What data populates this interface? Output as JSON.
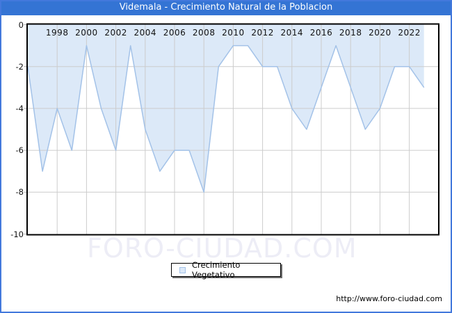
{
  "window": {
    "title": "Videmala - Crecimiento Natural de la Poblacion",
    "title_bar_color": "#3474d4",
    "frame_color": "#4379dc",
    "watermark": "FORO-CIUDAD.COM",
    "url_caption": "http://www.foro-ciudad.com"
  },
  "legend": {
    "label": "Crecimiento Vegetativo"
  },
  "chart_data": {
    "type": "area",
    "title": "Videmala - Crecimiento Natural de la Poblacion",
    "xlabel": "",
    "ylabel": "",
    "xlim": [
      1996,
      2023
    ],
    "ylim": [
      -10,
      0
    ],
    "grid": true,
    "legend_position": "bottom-center",
    "x_tick_labels": [
      1998,
      2000,
      2002,
      2004,
      2006,
      2008,
      2010,
      2012,
      2014,
      2016,
      2018,
      2020,
      2022
    ],
    "y_tick_labels": [
      0,
      -2,
      -4,
      -6,
      -8,
      -10
    ],
    "series": [
      {
        "name": "Crecimiento Vegetativo",
        "x": [
          1996,
          1997,
          1998,
          1999,
          2000,
          2001,
          2002,
          2003,
          2004,
          2005,
          2006,
          2007,
          2008,
          2009,
          2010,
          2011,
          2012,
          2013,
          2014,
          2015,
          2016,
          2017,
          2018,
          2019,
          2020,
          2021,
          2022,
          2023
        ],
        "values": [
          -2,
          -7,
          -4,
          -6,
          -1,
          -4,
          -6,
          -1,
          -5,
          -7,
          -6,
          -6,
          -8,
          -2,
          -1,
          -1,
          -2,
          -2,
          -4,
          -5,
          -3,
          -1,
          -3,
          -5,
          -4,
          -2,
          -2,
          -3
        ]
      }
    ],
    "colors": {
      "fill": "#dce9f8",
      "line": "#a3c2e8",
      "grid": "#cccccc",
      "tick": "#aaaaaa",
      "plot_border": "#000000"
    }
  }
}
